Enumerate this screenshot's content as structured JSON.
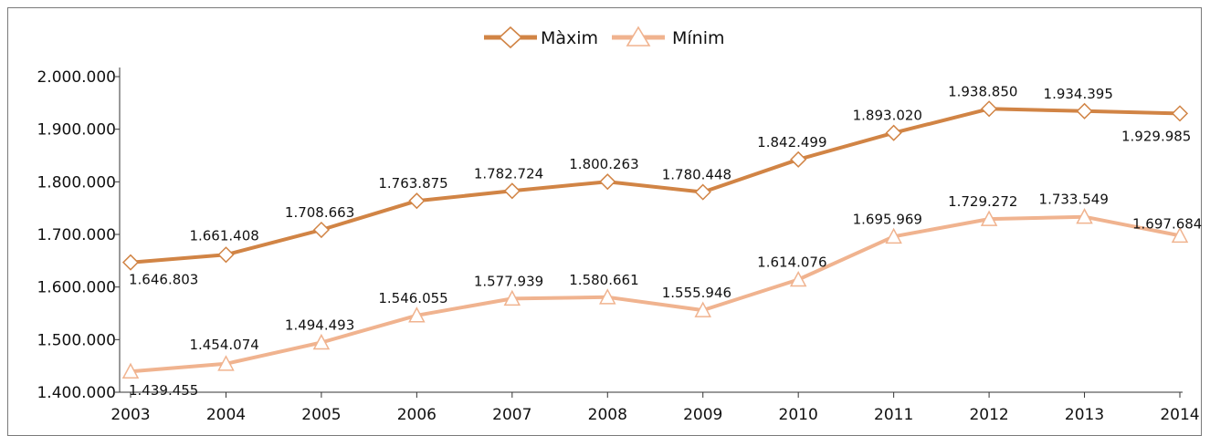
{
  "chart_data": {
    "type": "line",
    "categories": [
      "2003",
      "2004",
      "2005",
      "2006",
      "2007",
      "2008",
      "2009",
      "2010",
      "2011",
      "2012",
      "2013",
      "2014"
    ],
    "series": [
      {
        "name": "Màxim",
        "color": "#d18445",
        "marker": "diamond",
        "values": [
          1646803,
          1661408,
          1708663,
          1763875,
          1782724,
          1800263,
          1780448,
          1842499,
          1893020,
          1938850,
          1934395,
          1929985
        ],
        "labels": [
          "1.646.803",
          "1.661.408",
          "1.708.663",
          "1.763.875",
          "1.782.724",
          "1.800.263",
          "1.780.448",
          "1.842.499",
          "1.893.020",
          "1.938.850",
          "1.934.395",
          "1.929.985"
        ]
      },
      {
        "name": "Mínim",
        "color": "#f0b38f",
        "marker": "triangle",
        "values": [
          1439455,
          1454074,
          1494493,
          1546055,
          1577939,
          1580661,
          1555946,
          1614076,
          1695969,
          1729272,
          1733549,
          1697684
        ],
        "labels": [
          "1.439.455",
          "1.454.074",
          "1.494.493",
          "1.546.055",
          "1.577.939",
          "1.580.661",
          "1.555.946",
          "1.614.076",
          "1.695.969",
          "1.729.272",
          "1.733.549",
          "1.697.684"
        ]
      }
    ],
    "yticks": [
      1400000,
      1500000,
      1600000,
      1700000,
      1800000,
      1900000,
      2000000
    ],
    "ytick_labels": [
      "1.400.000",
      "1.500.000",
      "1.600.000",
      "1.700.000",
      "1.800.000",
      "1.900.000",
      "2.000.000"
    ],
    "ylim": [
      1400000,
      2000000
    ],
    "grid": false,
    "legend": "top-center",
    "title": "",
    "xlabel": "",
    "ylabel": ""
  }
}
